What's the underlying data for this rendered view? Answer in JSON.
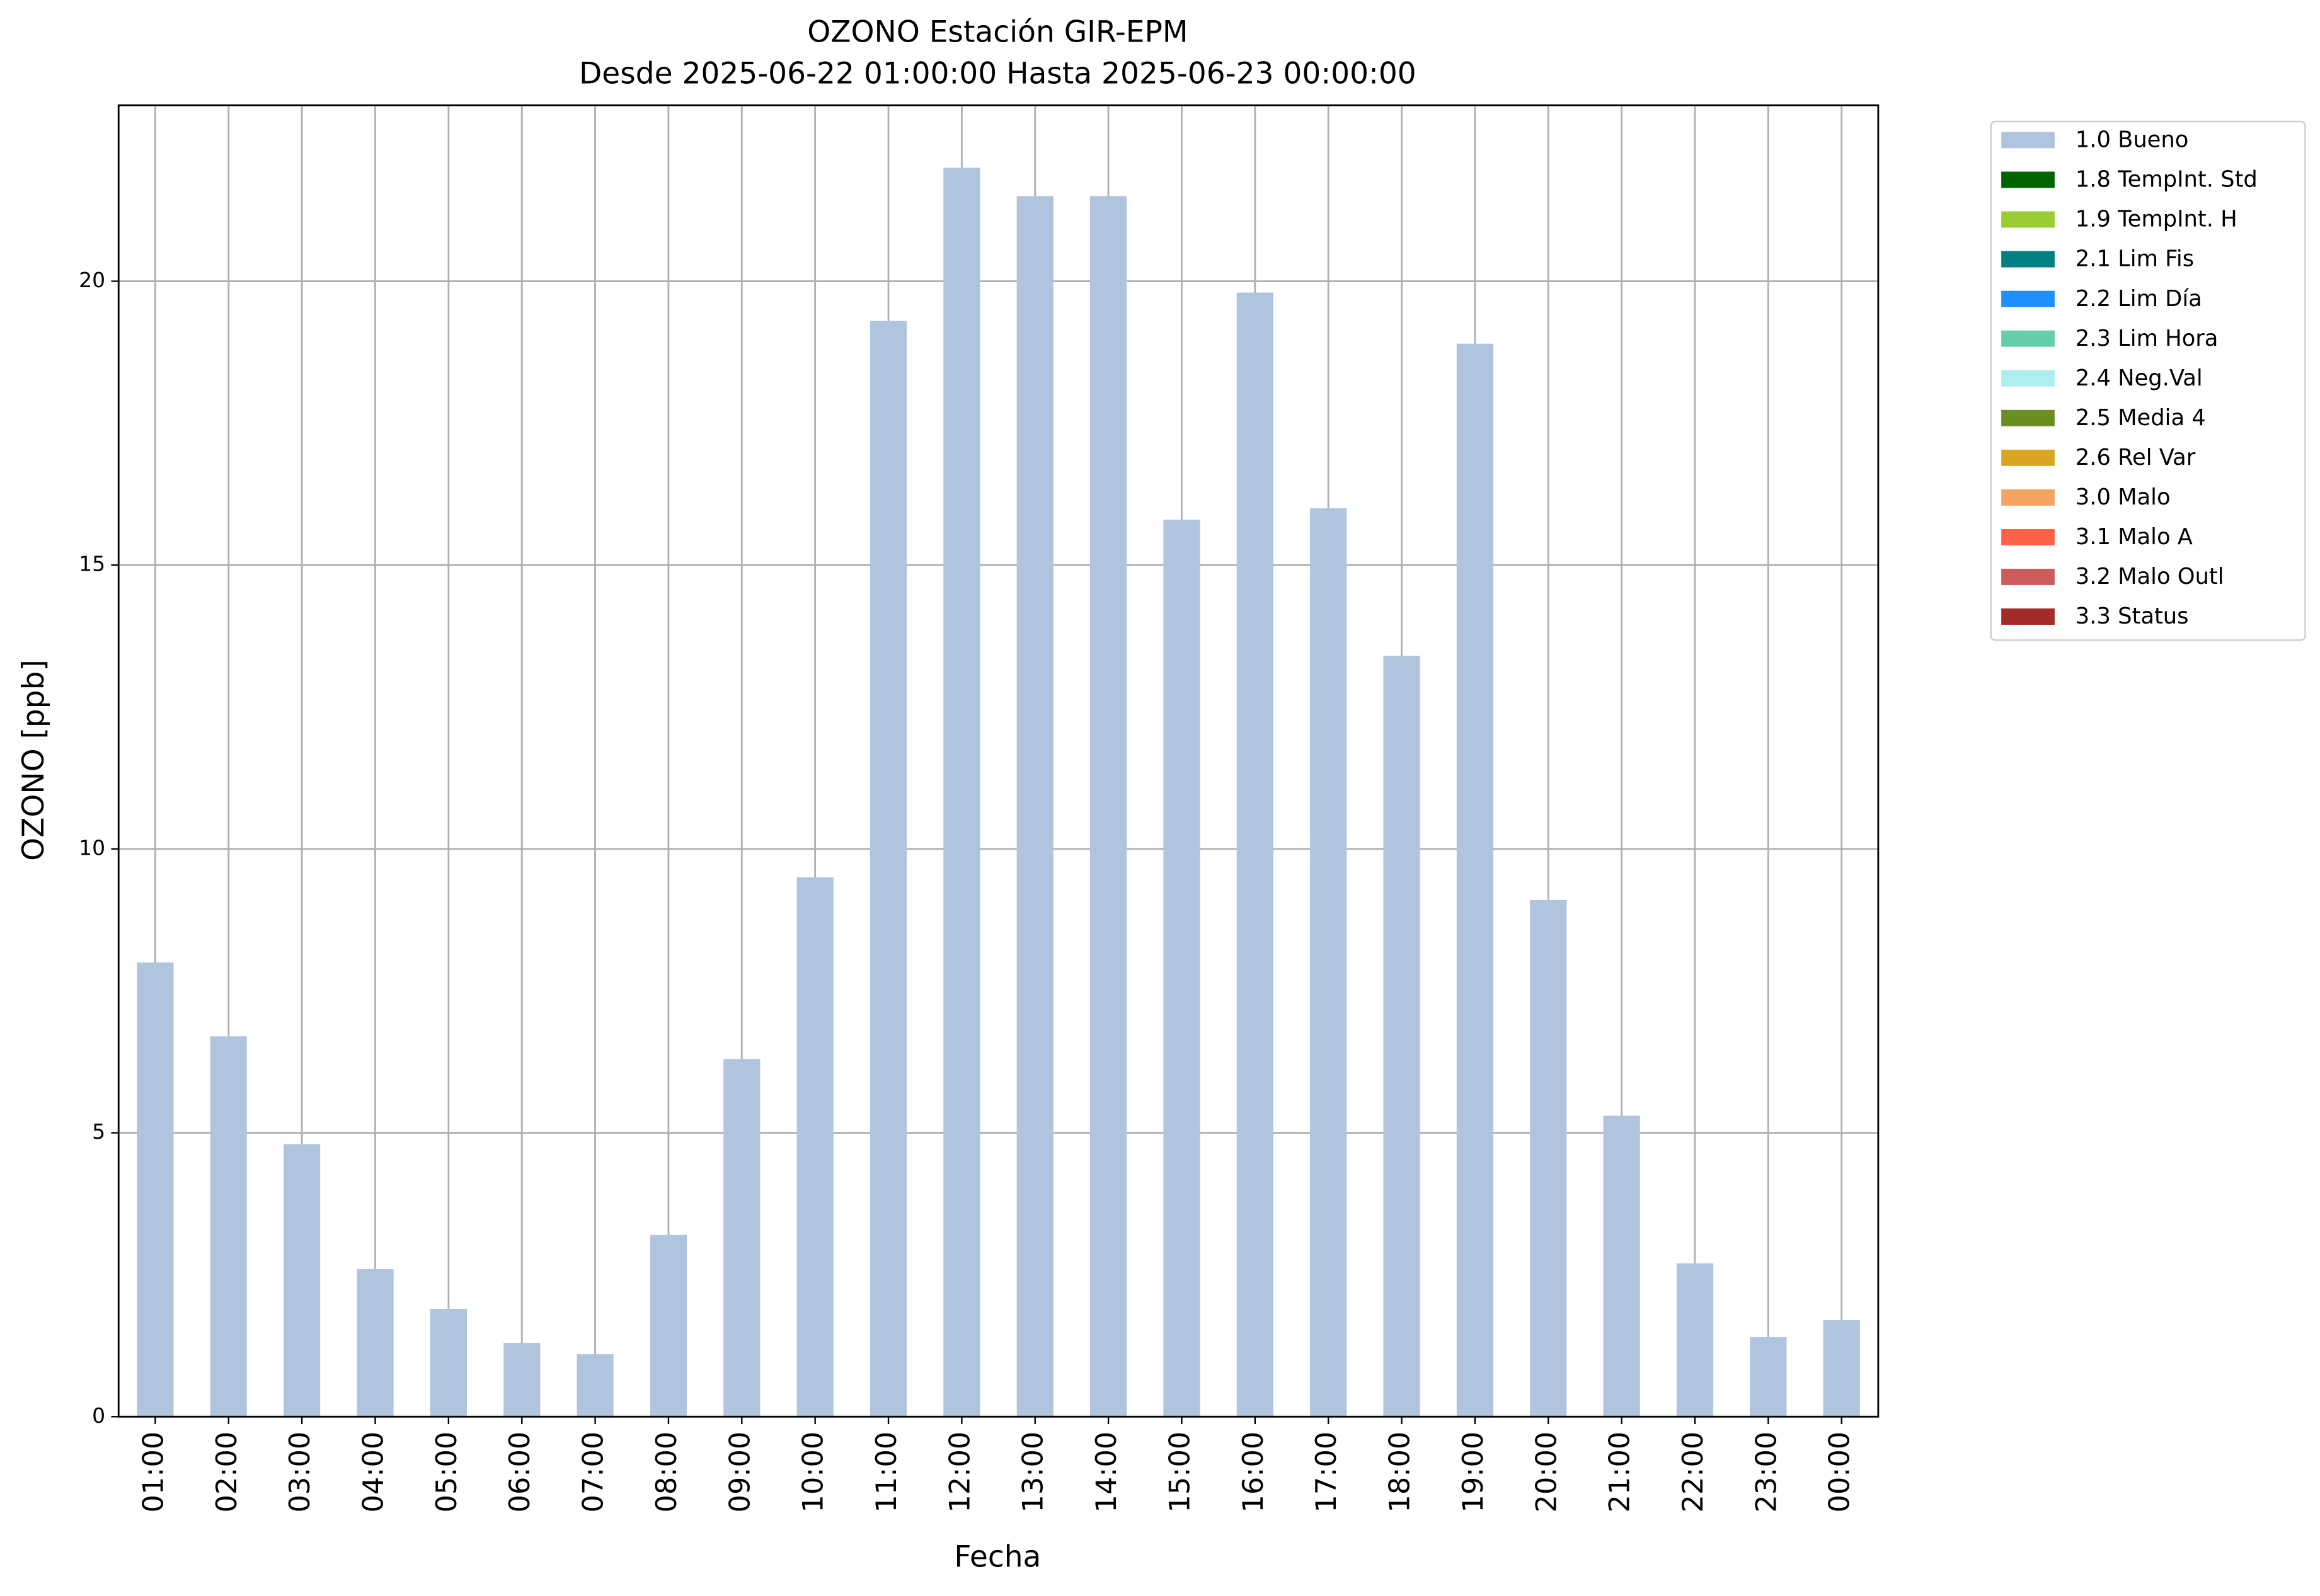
{
  "chart_data": {
    "type": "stacked_bar",
    "title": "OZONO Estación GIR-EPM",
    "subtitle": "Desde 2025-06-22 01:00:00 Hasta 2025-06-23 00:00:00",
    "x_label": "Fecha",
    "y_label": "OZONO [ppb]",
    "categories": [
      "01:00",
      "02:00",
      "03:00",
      "04:00",
      "05:00",
      "06:00",
      "07:00",
      "08:00",
      "09:00",
      "10:00",
      "11:00",
      "12:00",
      "13:00",
      "14:00",
      "15:00",
      "16:00",
      "17:00",
      "18:00",
      "19:00",
      "20:00",
      "21:00",
      "22:00",
      "23:00",
      "00:00"
    ],
    "series": [
      {
        "name": "1.0 Bueno",
        "color": "#b0c4de",
        "values": [
          8.0,
          6.7,
          4.8,
          2.6,
          1.9,
          1.3,
          1.1,
          3.2,
          6.3,
          9.5,
          19.3,
          22.0,
          21.5,
          21.5,
          15.8,
          19.8,
          16.0,
          13.4,
          18.9,
          9.1,
          5.3,
          2.7,
          1.4,
          1.7
        ]
      },
      {
        "name": "1.8 TempInt. Std",
        "color": "#006400",
        "values": [
          0,
          0,
          0,
          0,
          0,
          0,
          0,
          0,
          0,
          0,
          0,
          0,
          0,
          0,
          0,
          0,
          0,
          0,
          0,
          0,
          0,
          0,
          0,
          0
        ]
      },
      {
        "name": "1.9 TempInt. H",
        "color": "#9acd32",
        "values": [
          0,
          0,
          0,
          0,
          0,
          0,
          0,
          0,
          0,
          0,
          0,
          0,
          0,
          0,
          0,
          0,
          0,
          0,
          0,
          0,
          0,
          0,
          0,
          0
        ]
      },
      {
        "name": "2.1 Lim Fis",
        "color": "#008080",
        "values": [
          0,
          0,
          0,
          0,
          0,
          0,
          0,
          0,
          0,
          0,
          0,
          0,
          0,
          0,
          0,
          0,
          0,
          0,
          0,
          0,
          0,
          0,
          0,
          0
        ]
      },
      {
        "name": "2.2 Lim Día",
        "color": "#1e90ff",
        "values": [
          0,
          0,
          0,
          0,
          0,
          0,
          0,
          0,
          0,
          0,
          0,
          0,
          0,
          0,
          0,
          0,
          0,
          0,
          0,
          0,
          0,
          0,
          0,
          0
        ]
      },
      {
        "name": "2.3 Lim Hora",
        "color": "#66cdaa",
        "values": [
          0,
          0,
          0,
          0,
          0,
          0,
          0,
          0,
          0,
          0,
          0,
          0,
          0,
          0,
          0,
          0,
          0,
          0,
          0,
          0,
          0,
          0,
          0,
          0
        ]
      },
      {
        "name": "2.4 Neg.Val",
        "color": "#afeeee",
        "values": [
          0,
          0,
          0,
          0,
          0,
          0,
          0,
          0,
          0,
          0,
          0,
          0,
          0,
          0,
          0,
          0,
          0,
          0,
          0,
          0,
          0,
          0,
          0,
          0
        ]
      },
      {
        "name": "2.5 Media 4",
        "color": "#6b8e23",
        "values": [
          0,
          0,
          0,
          0,
          0,
          0,
          0,
          0,
          0,
          0,
          0,
          0,
          0,
          0,
          0,
          0,
          0,
          0,
          0,
          0,
          0,
          0,
          0,
          0
        ]
      },
      {
        "name": "2.6 Rel Var",
        "color": "#daa520",
        "values": [
          0,
          0,
          0,
          0,
          0,
          0,
          0,
          0,
          0,
          0,
          0,
          0,
          0,
          0,
          0,
          0,
          0,
          0,
          0,
          0,
          0,
          0,
          0,
          0
        ]
      },
      {
        "name": "3.0 Malo",
        "color": "#f4a460",
        "values": [
          0,
          0,
          0,
          0,
          0,
          0,
          0,
          0,
          0,
          0,
          0,
          0,
          0,
          0,
          0,
          0,
          0,
          0,
          0,
          0,
          0,
          0,
          0,
          0
        ]
      },
      {
        "name": "3.1 Malo A",
        "color": "#ff6347",
        "values": [
          0,
          0,
          0,
          0,
          0,
          0,
          0,
          0,
          0,
          0,
          0,
          0,
          0,
          0,
          0,
          0,
          0,
          0,
          0,
          0,
          0,
          0,
          0,
          0
        ]
      },
      {
        "name": "3.2 Malo Outl",
        "color": "#cd5c5c",
        "values": [
          0,
          0,
          0,
          0,
          0,
          0,
          0,
          0,
          0,
          0,
          0,
          0,
          0,
          0,
          0,
          0,
          0,
          0,
          0,
          0,
          0,
          0,
          0,
          0
        ]
      },
      {
        "name": "3.3 Status",
        "color": "#a52a2a",
        "values": [
          0,
          0,
          0,
          0,
          0,
          0,
          0,
          0,
          0,
          0,
          0,
          0,
          0,
          0,
          0,
          0,
          0,
          0,
          0,
          0,
          0,
          0,
          0,
          0
        ]
      }
    ],
    "ylim": [
      0,
      23.1
    ],
    "yticks": [
      0,
      5,
      10,
      15,
      20
    ],
    "grid": true,
    "legend": "outside-right"
  }
}
